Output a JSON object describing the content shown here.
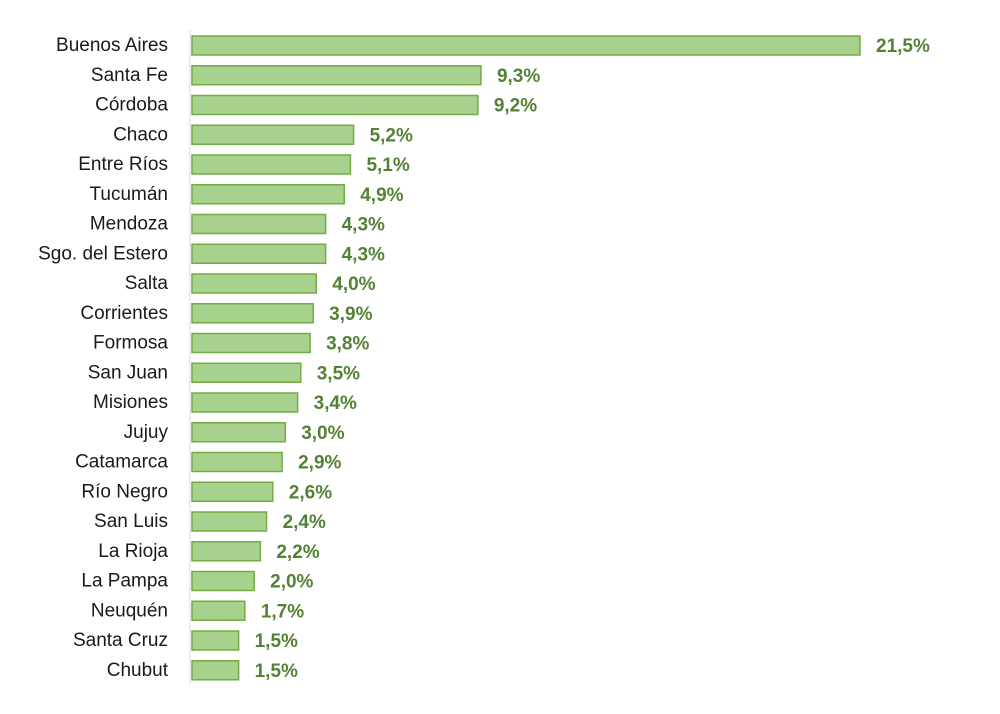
{
  "chart_data": {
    "type": "bar",
    "orientation": "horizontal",
    "categories": [
      "Buenos Aires",
      "Santa Fe",
      "Córdoba",
      "Chaco",
      "Entre Ríos",
      "Tucumán",
      "Mendoza",
      "Sgo. del Estero",
      "Salta",
      "Corrientes",
      "Formosa",
      "San Juan",
      "Misiones",
      "Jujuy",
      "Catamarca",
      "Río Negro",
      "San Luis",
      "La Rioja",
      "La Pampa",
      "Neuquén",
      "Santa Cruz",
      "Chubut"
    ],
    "values": [
      21.5,
      9.3,
      9.2,
      5.2,
      5.1,
      4.9,
      4.3,
      4.3,
      4.0,
      3.9,
      3.8,
      3.5,
      3.4,
      3.0,
      2.9,
      2.6,
      2.4,
      2.2,
      2.0,
      1.7,
      1.5,
      1.5
    ],
    "value_labels": [
      "21,5%",
      "9,3%",
      "9,2%",
      "5,2%",
      "5,1%",
      "4,9%",
      "4,3%",
      "4,3%",
      "4,0%",
      "3,9%",
      "3,8%",
      "3,5%",
      "3,4%",
      "3,0%",
      "2,9%",
      "2,6%",
      "2,4%",
      "2,2%",
      "2,0%",
      "1,7%",
      "1,5%",
      "1,5%"
    ],
    "title": "",
    "xlabel": "",
    "ylabel": "",
    "xlim": [
      0,
      21.5
    ],
    "grid": false,
    "legend": "none",
    "colors": {
      "bar_fill": "#a9d18e",
      "bar_stroke": "#70ad47",
      "value_label": "#548235",
      "axis": "#d9d9d9"
    }
  }
}
